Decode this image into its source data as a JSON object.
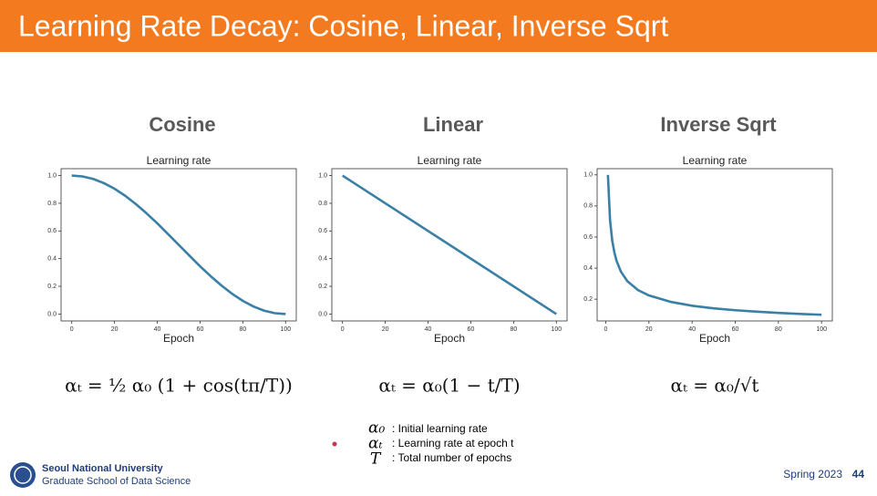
{
  "header": {
    "title": "Learning Rate Decay: Cosine, Linear, Inverse Sqrt"
  },
  "chart_data": [
    {
      "type": "line",
      "heading": "Cosine",
      "title": "Learning rate",
      "xlabel": "Epoch",
      "formula": "αₜ = ½ α₀ (1 + cos(tπ/T))",
      "x": [
        0,
        5,
        10,
        15,
        20,
        25,
        30,
        35,
        40,
        45,
        50,
        55,
        60,
        65,
        70,
        75,
        80,
        85,
        90,
        95,
        100
      ],
      "values": [
        1.0,
        0.994,
        0.976,
        0.946,
        0.905,
        0.854,
        0.794,
        0.727,
        0.655,
        0.578,
        0.5,
        0.422,
        0.345,
        0.273,
        0.206,
        0.146,
        0.095,
        0.054,
        0.024,
        0.006,
        0.0
      ],
      "color": "#3a7fa5",
      "xlim": [
        -5,
        105
      ],
      "ylim": [
        -0.05,
        1.05
      ],
      "xticks": [
        0,
        20,
        40,
        60,
        80,
        100
      ],
      "yticks": [
        {
          "value": 0,
          "label": "0.0"
        },
        0.2,
        0.4,
        0.6,
        0.8,
        {
          "value": 1,
          "label": "1.0"
        }
      ]
    },
    {
      "type": "line",
      "heading": "Linear",
      "title": "Learning rate",
      "xlabel": "Epoch",
      "formula": "αₜ = α₀(1 − t/T)",
      "x": [
        0,
        100
      ],
      "values": [
        1.0,
        0.0
      ],
      "color": "#3a7fa5",
      "xlim": [
        -5,
        105
      ],
      "ylim": [
        -0.05,
        1.05
      ],
      "xticks": [
        0,
        20,
        40,
        60,
        80,
        100
      ],
      "yticks": [
        {
          "value": 0,
          "label": "0.0"
        },
        0.2,
        0.4,
        0.6,
        0.8,
        {
          "value": 1,
          "label": "1.0"
        }
      ]
    },
    {
      "type": "line",
      "heading": "Inverse Sqrt",
      "title": "Learning rate",
      "xlabel": "Epoch",
      "formula": "αₜ = α₀/√t",
      "x": [
        1,
        2,
        3,
        4,
        5,
        7,
        10,
        15,
        20,
        30,
        40,
        50,
        60,
        70,
        80,
        90,
        100
      ],
      "values": [
        1.0,
        0.707,
        0.577,
        0.5,
        0.447,
        0.378,
        0.316,
        0.258,
        0.224,
        0.183,
        0.158,
        0.141,
        0.129,
        0.12,
        0.112,
        0.105,
        0.1
      ],
      "color": "#3a7fa5",
      "xlim": [
        -4,
        105
      ],
      "ylim": [
        0.06,
        1.04
      ],
      "xticks": [
        0,
        20,
        40,
        60,
        80,
        100
      ],
      "yticks": [
        0.2,
        0.4,
        0.6,
        0.8,
        {
          "value": 1,
          "label": "1.0"
        }
      ]
    }
  ],
  "legend": [
    {
      "symbol": "α₀",
      "text": ": Initial learning rate"
    },
    {
      "symbol": "αₜ",
      "text": ": Learning rate at epoch t"
    },
    {
      "symbol": "T",
      "text": ": Total number of epochs"
    }
  ],
  "footer": {
    "university": "Seoul National University",
    "school": "Graduate School of Data Science",
    "term": "Spring 2023",
    "page": "44"
  }
}
